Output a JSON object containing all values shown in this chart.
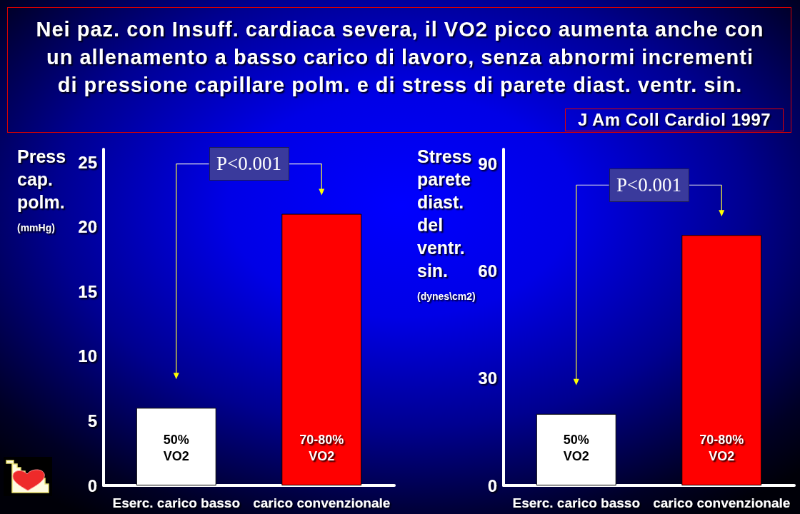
{
  "chart_data": [
    {
      "type": "bar",
      "title": "Nei paz. con Insuff. cardiaca severa, il VO2 picco aumenta anche con\nun allenamento a basso carico di lavoro, senza abnormi incrementi\ndi pressione capillare polm. e di stress di parete diast. ventr. sin.",
      "ylabel": "Press cap. polm. (mmHg)",
      "categories": [
        "Eserc. carico basso",
        "carico convenzionale"
      ],
      "values": [
        6,
        21
      ],
      "colors": [
        "#ffffff",
        "#ff0000"
      ],
      "ylim": [
        0,
        26
      ],
      "yticks": [
        0,
        5,
        10,
        15,
        20,
        25
      ],
      "annotations": [
        "50%\nVO2",
        "70-80%\nVO2",
        "P<0.001"
      ]
    },
    {
      "type": "bar",
      "ylabel": "Stress parete diast. del ventr. sin. (dynes\\cm2)",
      "categories": [
        "Eserc. carico basso",
        "carico convenzionale"
      ],
      "values": [
        20,
        70
      ],
      "colors": [
        "#ffffff",
        "#ff0000"
      ],
      "ylim": [
        0,
        94
      ],
      "yticks": [
        0,
        30,
        60,
        90
      ],
      "annotations": [
        "50%\nVO2",
        "70-80%\nVO2",
        "P<0.001",
        "J Am Coll Cardiol 1997"
      ]
    }
  ]
}
